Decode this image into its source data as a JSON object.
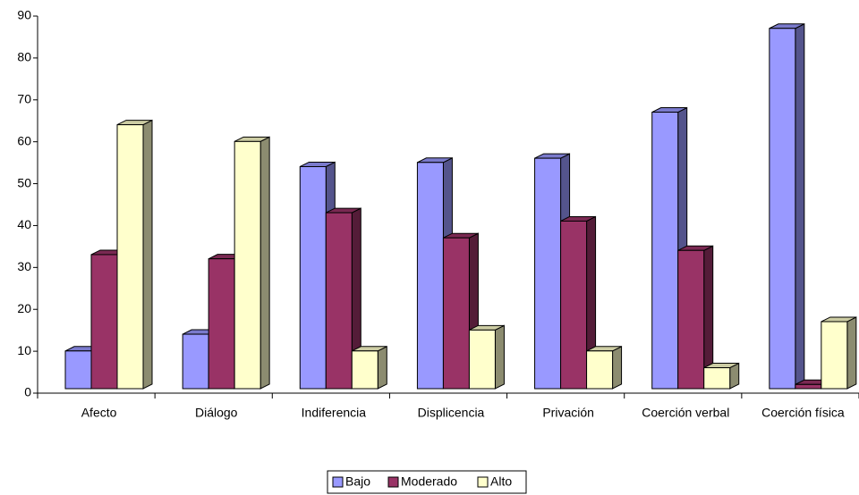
{
  "chart_data": {
    "type": "bar3d",
    "categories": [
      "Afecto",
      "Diálogo",
      "Indiferencia",
      "Displicencia",
      "Privación",
      "Coerción verbal",
      "Coerción física"
    ],
    "series": [
      {
        "name": "Bajo",
        "color": "#9999ff",
        "values": [
          9,
          13,
          53,
          54,
          55,
          66,
          86
        ]
      },
      {
        "name": "Moderado",
        "color": "#993366",
        "values": [
          32,
          31,
          42,
          36,
          40,
          33,
          1
        ]
      },
      {
        "name": "Alto",
        "color": "#ffffcc",
        "values": [
          63,
          59,
          9,
          14,
          9,
          5,
          16
        ]
      }
    ],
    "ylim": [
      0,
      90
    ],
    "yticks": [
      0,
      10,
      20,
      30,
      40,
      50,
      60,
      70,
      80,
      90
    ],
    "grid": false,
    "legend": "bottom"
  }
}
